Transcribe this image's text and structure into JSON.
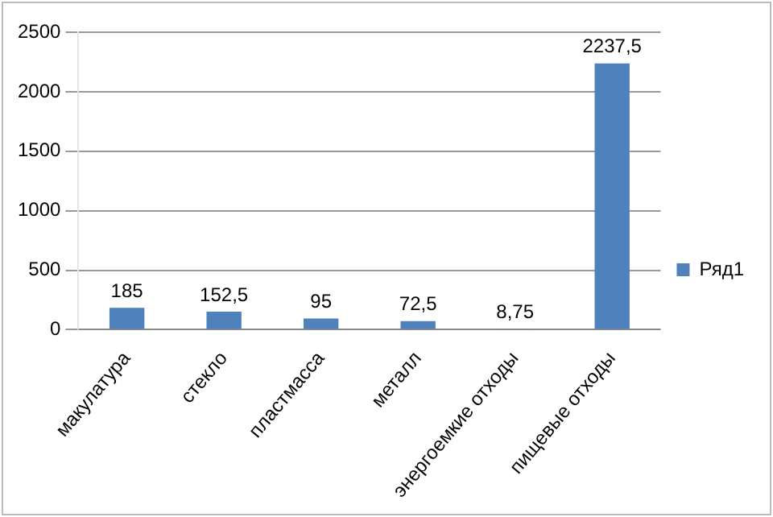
{
  "chart_data": {
    "type": "bar",
    "categories": [
      "макулатура",
      "стекло",
      "пластмасса",
      "металл",
      "энергоемкие отходы",
      "пищевые отходы"
    ],
    "series": [
      {
        "name": "Ряд1",
        "color": "#4f81bd",
        "values": [
          185,
          152.5,
          95,
          72.5,
          8.75,
          2237.5
        ],
        "value_labels": [
          "185",
          "152,5",
          "95",
          "72,5",
          "8,75",
          "2237,5"
        ]
      }
    ],
    "ylim": [
      0,
      2500
    ],
    "yticks": [
      0,
      500,
      1000,
      1500,
      2000,
      2500
    ],
    "grid": "y",
    "legend": "right"
  }
}
